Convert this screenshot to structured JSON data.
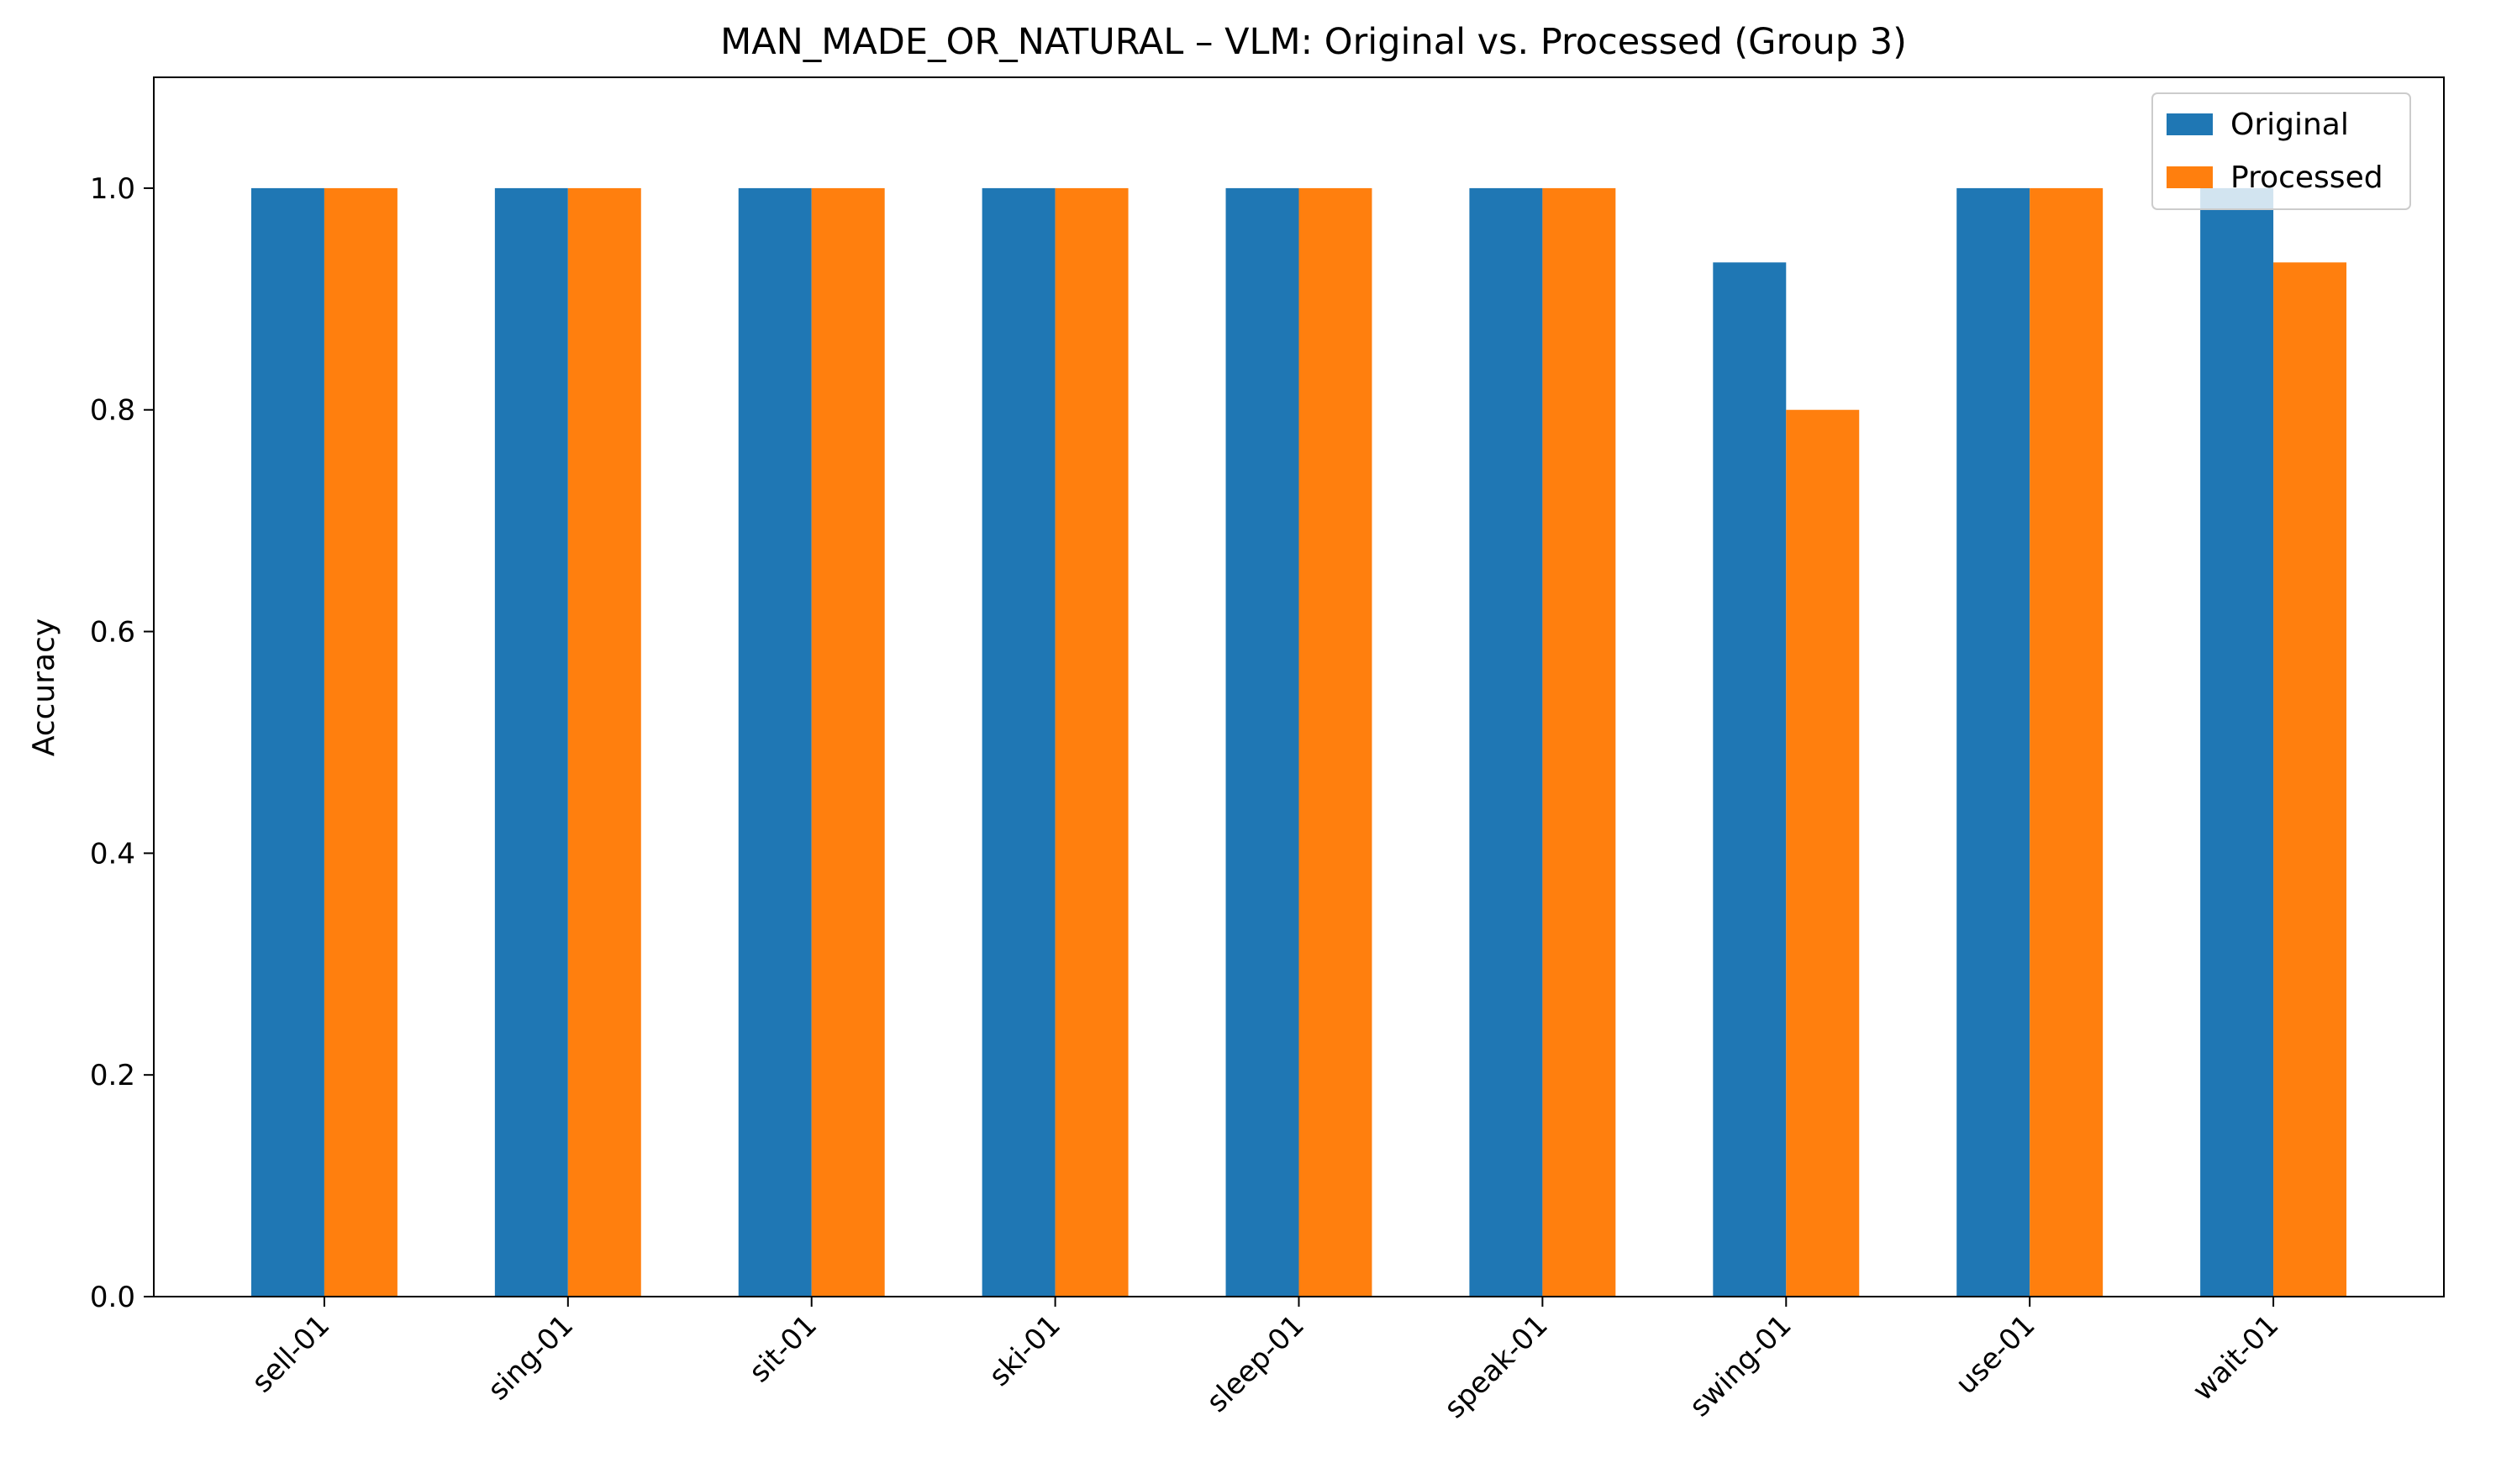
{
  "chart_data": {
    "type": "bar",
    "title": "MAN_MADE_OR_NATURAL – VLM: Original vs. Processed (Group 3)",
    "xlabel": "",
    "ylabel": "Accuracy",
    "ylim": [
      0,
      1.1
    ],
    "yticks": [
      0.0,
      0.2,
      0.4,
      0.6,
      0.8,
      1.0
    ],
    "ytick_labels": [
      "0.0",
      "0.2",
      "0.4",
      "0.6",
      "0.8",
      "1.0"
    ],
    "categories": [
      "sell-01",
      "sing-01",
      "sit-01",
      "ski-01",
      "sleep-01",
      "speak-01",
      "swing-01",
      "use-01",
      "wait-01"
    ],
    "series": [
      {
        "name": "Original",
        "color": "#1f77b4",
        "values": [
          1.0,
          1.0,
          1.0,
          1.0,
          1.0,
          1.0,
          0.933,
          1.0,
          1.0
        ]
      },
      {
        "name": "Processed",
        "color": "#ff7f0e",
        "values": [
          1.0,
          1.0,
          1.0,
          1.0,
          1.0,
          1.0,
          0.8,
          1.0,
          0.933
        ]
      }
    ],
    "legend_position": "top-right",
    "grid": false
  }
}
